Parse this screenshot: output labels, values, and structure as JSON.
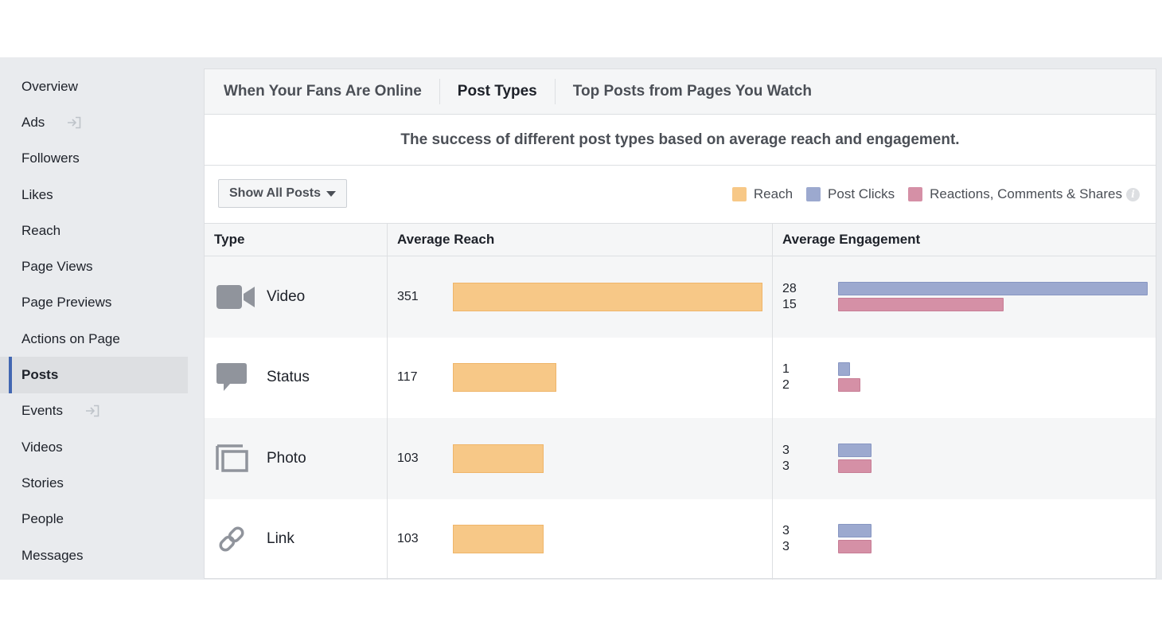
{
  "sidebar": {
    "items": [
      {
        "label": "Overview"
      },
      {
        "label": "Ads",
        "external": true
      },
      {
        "label": "Followers"
      },
      {
        "label": "Likes"
      },
      {
        "label": "Reach"
      },
      {
        "label": "Page Views"
      },
      {
        "label": "Page Previews"
      },
      {
        "label": "Actions on Page"
      },
      {
        "label": "Posts",
        "active": true
      },
      {
        "label": "Events",
        "external": true
      },
      {
        "label": "Videos"
      },
      {
        "label": "Stories"
      },
      {
        "label": "People"
      },
      {
        "label": "Messages"
      }
    ]
  },
  "tabs": [
    {
      "label": "When Your Fans Are Online",
      "active": false
    },
    {
      "label": "Post Types",
      "active": true
    },
    {
      "label": "Top Posts from Pages You Watch",
      "active": false
    }
  ],
  "subtitle": "The success of different post types based on average reach and engagement.",
  "filter": {
    "label": "Show All Posts"
  },
  "legend": [
    {
      "label": "Reach",
      "color": "#f7c887"
    },
    {
      "label": "Post Clicks",
      "color": "#9ca9cf"
    },
    {
      "label": "Reactions, Comments & Shares",
      "color": "#d590a6"
    }
  ],
  "table": {
    "headers": {
      "type": "Type",
      "reach": "Average Reach",
      "engagement": "Average Engagement"
    },
    "reach_max": 351,
    "engagement_max": 28,
    "rows": [
      {
        "type": "Video",
        "icon": "video-icon",
        "reach": 351,
        "clicks": 28,
        "reactions": 15
      },
      {
        "type": "Status",
        "icon": "status-icon",
        "reach": 117,
        "clicks": 1,
        "reactions": 2
      },
      {
        "type": "Photo",
        "icon": "photo-icon",
        "reach": 103,
        "clicks": 3,
        "reactions": 3
      },
      {
        "type": "Link",
        "icon": "link-icon",
        "reach": 103,
        "clicks": 3,
        "reactions": 3
      }
    ]
  }
}
